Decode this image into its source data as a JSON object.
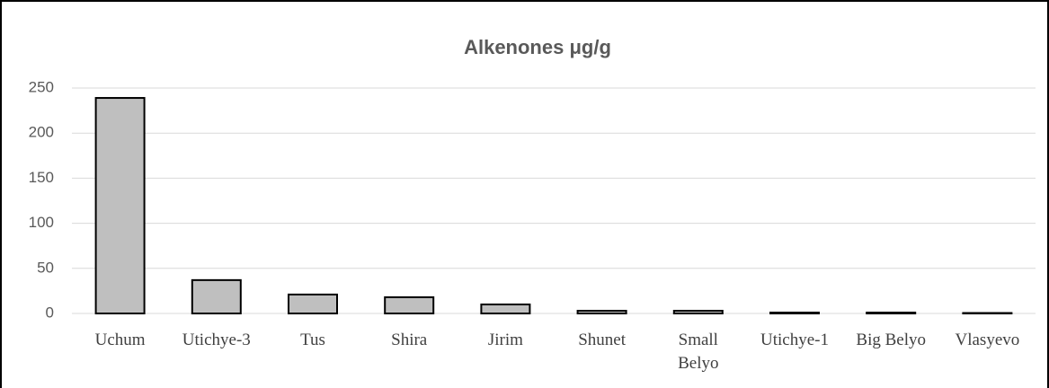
{
  "chart_data": {
    "type": "bar",
    "title": "Alkenones μg/g",
    "categories": [
      "Uchum",
      "Utichye-3",
      "Tus",
      "Shira",
      "Jirim",
      "Shunet",
      "Small Belyo",
      "Utichye-1",
      "Big Belyo",
      "Vlasyevo"
    ],
    "values": [
      239,
      37,
      21,
      18,
      10,
      3,
      3,
      1,
      1,
      0.5
    ],
    "color": "#bfbfbf",
    "ylim": [
      0,
      250
    ],
    "yticks": [
      0,
      50,
      100,
      150,
      200,
      250
    ],
    "grid": true
  }
}
